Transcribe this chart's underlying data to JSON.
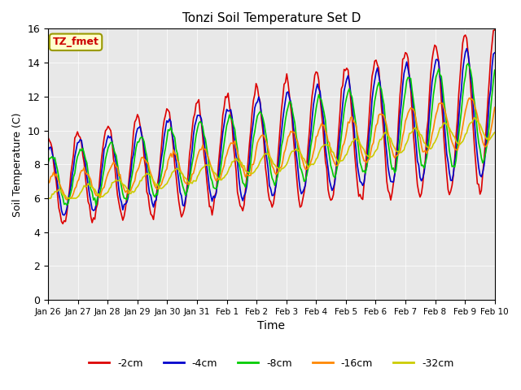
{
  "title": "Tonzi Soil Temperature Set D",
  "xlabel": "Time",
  "ylabel": "Soil Temperature (C)",
  "annotation": "TZ_fmet",
  "annotation_color": "#cc0000",
  "annotation_bg": "#ffffcc",
  "annotation_border": "#999900",
  "ylim": [
    0,
    16
  ],
  "series_colors": {
    "-2cm": "#dd0000",
    "-4cm": "#0000cc",
    "-8cm": "#00cc00",
    "-16cm": "#ff8800",
    "-32cm": "#cccc00"
  },
  "series_labels": [
    "-2cm",
    "-4cm",
    "-8cm",
    "-16cm",
    "-32cm"
  ],
  "bg_color": "#e8e8e8",
  "x_tick_labels": [
    "Jan 26",
    "Jan 27",
    "Jan 28",
    "Jan 29",
    "Jan 30",
    "Jan 31",
    "Feb 1",
    "Feb 2",
    "Feb 3",
    "Feb 4",
    "Feb 5",
    "Feb 6",
    "Feb 7",
    "Feb 8",
    "Feb 9",
    "Feb 10"
  ],
  "n_points": 336
}
